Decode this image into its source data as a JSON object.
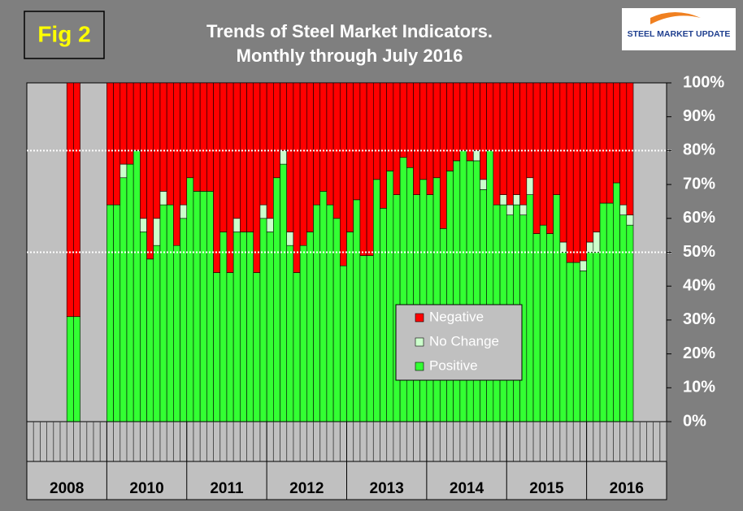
{
  "figure_label": "Fig 2",
  "logo_text": "STEEL MARKET UPDATE",
  "chart_data": {
    "type": "stacked_bar",
    "title": "Trends of Steel Market Indicators.",
    "subtitle": "Monthly through July 2016",
    "categories": [
      null,
      null,
      null,
      null,
      null,
      null,
      null,
      null,
      null,
      null,
      null,
      null,
      null,
      null,
      null,
      null,
      null,
      null,
      null,
      null,
      null,
      null,
      null,
      null,
      null,
      null,
      null,
      null,
      null,
      null,
      null,
      null,
      null,
      null,
      null,
      null,
      null,
      null,
      null,
      null,
      null,
      null,
      null,
      null,
      null,
      null,
      null,
      null,
      null,
      null,
      null,
      null,
      null,
      null,
      null,
      null,
      null,
      null,
      null,
      null,
      null,
      null,
      null,
      null,
      null,
      null,
      null,
      null,
      null,
      null,
      null,
      null,
      null,
      null,
      null,
      null,
      null,
      null,
      null,
      null,
      null,
      null,
      null,
      null,
      null,
      null,
      null,
      null,
      null,
      null,
      null,
      null,
      null,
      null,
      null,
      null
    ],
    "x_groups": [
      "2008",
      "2010",
      "2011",
      "2012",
      "2013",
      "2014",
      "2015",
      "2016"
    ],
    "series": [
      {
        "name": "Positive",
        "color": "#33ff33",
        "values": [
          null,
          null,
          null,
          null,
          null,
          null,
          31,
          31,
          null,
          null,
          null,
          null,
          64,
          64,
          72,
          76,
          80,
          56,
          48,
          52,
          64,
          64,
          52,
          60,
          72,
          68,
          68,
          68,
          44,
          56,
          44,
          56,
          56,
          56,
          44,
          60,
          56,
          72,
          76,
          52,
          44,
          52,
          56,
          64,
          68,
          64,
          60,
          46,
          56,
          65.5,
          49,
          49,
          71.5,
          63,
          74,
          67,
          78,
          75,
          67,
          71.5,
          67,
          72,
          57,
          74,
          77,
          80,
          77,
          77,
          68.5,
          80,
          64,
          64,
          61,
          64,
          61,
          67,
          55.5,
          58,
          55.5,
          67,
          50,
          47,
          47,
          44.5,
          50,
          50,
          64.5,
          64.5,
          70.5,
          61,
          58,
          null,
          null,
          null,
          null,
          null
        ]
      },
      {
        "name": "No Change",
        "color": "#ccffcc",
        "values": [
          null,
          null,
          null,
          null,
          null,
          null,
          0,
          0,
          null,
          null,
          null,
          null,
          0,
          0,
          4,
          0,
          0,
          4,
          0,
          8,
          4,
          0,
          0,
          4,
          0,
          0,
          0,
          0,
          0,
          0,
          0,
          4,
          0,
          0,
          0,
          4,
          4,
          0,
          4,
          4,
          0,
          0,
          0,
          0,
          0,
          0,
          0,
          0,
          0,
          0,
          0,
          0,
          0,
          0,
          0,
          0,
          0,
          0,
          0,
          0,
          0,
          0,
          0,
          0,
          0,
          0,
          0,
          3,
          3,
          0,
          0,
          3,
          3,
          3,
          3,
          5,
          0,
          0,
          0,
          0,
          3,
          0,
          0,
          3,
          3,
          6,
          0,
          0,
          0,
          3,
          3,
          null,
          null,
          null,
          null,
          null
        ]
      },
      {
        "name": "Negative",
        "color": "#ff0000",
        "values": [
          null,
          null,
          null,
          null,
          null,
          null,
          69,
          69,
          null,
          null,
          null,
          null,
          36,
          36,
          24,
          24,
          20,
          40,
          52,
          40,
          32,
          36,
          48,
          36,
          28,
          32,
          32,
          32,
          56,
          44,
          56,
          40,
          44,
          44,
          56,
          36,
          40,
          28,
          20,
          44,
          56,
          48,
          44,
          36,
          32,
          36,
          40,
          54,
          44,
          34.5,
          51,
          51,
          28.5,
          37,
          26,
          33,
          22,
          25,
          33,
          28.5,
          33,
          28,
          43,
          26,
          23,
          20,
          23,
          20,
          28.5,
          20,
          36,
          33,
          36,
          33,
          36,
          28,
          44.5,
          42,
          44.5,
          33,
          47,
          53,
          53,
          52.5,
          47,
          44,
          35.5,
          35.5,
          29.5,
          36,
          39,
          null,
          null,
          null,
          null,
          null
        ]
      }
    ],
    "ylim": [
      0,
      100
    ],
    "yticks": [
      {
        "value": 0,
        "label": "0%"
      },
      {
        "value": 10,
        "label": "10%"
      },
      {
        "value": 20,
        "label": "20%"
      },
      {
        "value": 30,
        "label": "30%"
      },
      {
        "value": 40,
        "label": "40%"
      },
      {
        "value": 50,
        "label": "50%"
      },
      {
        "value": 60,
        "label": "60%"
      },
      {
        "value": 70,
        "label": "70%"
      },
      {
        "value": 80,
        "label": "80%"
      },
      {
        "value": 90,
        "label": "90%"
      },
      {
        "value": 100,
        "label": "100%"
      }
    ],
    "reference_lines": [
      50,
      80
    ],
    "legend": "center-right"
  }
}
